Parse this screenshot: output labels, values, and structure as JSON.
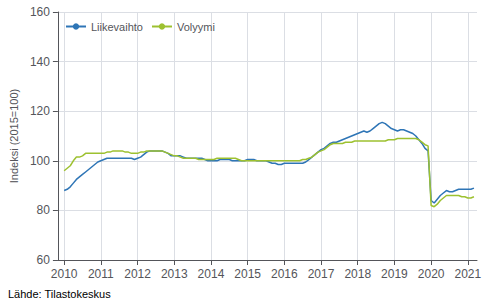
{
  "chart_data": {
    "type": "line",
    "ylabel": "Indeksi (2015=100)",
    "annotation": "Lähde: Tilastokeskus",
    "legend": "upper left",
    "grid": true,
    "xlim": [
      2009.83,
      2021.25
    ],
    "xticks": [
      2010,
      2011,
      2012,
      2013,
      2014,
      2015,
      2016,
      2017,
      2018,
      2019,
      2020,
      2021
    ],
    "ylim": [
      60,
      160
    ],
    "yticks": [
      60,
      80,
      100,
      120,
      140,
      160
    ],
    "x": [
      2010,
      2010.0833333333333,
      2010.1666666666667,
      2010.25,
      2010.3333333333333,
      2010.4166666666667,
      2010.5,
      2010.5833333333333,
      2010.6666666666667,
      2010.75,
      2010.8333333333333,
      2010.9166666666667,
      2011,
      2011.0833333333333,
      2011.1666666666667,
      2011.25,
      2011.3333333333333,
      2011.4166666666667,
      2011.5,
      2011.5833333333333,
      2011.6666666666667,
      2011.75,
      2011.8333333333333,
      2011.9166666666667,
      2012,
      2012.0833333333333,
      2012.1666666666667,
      2012.25,
      2012.3333333333333,
      2012.4166666666667,
      2012.5,
      2012.5833333333333,
      2012.6666666666667,
      2012.75,
      2012.8333333333333,
      2012.9166666666667,
      2013,
      2013.0833333333333,
      2013.1666666666667,
      2013.25,
      2013.3333333333333,
      2013.4166666666667,
      2013.5,
      2013.5833333333333,
      2013.6666666666667,
      2013.75,
      2013.8333333333333,
      2013.9166666666667,
      2014,
      2014.0833333333333,
      2014.1666666666667,
      2014.25,
      2014.3333333333333,
      2014.4166666666667,
      2014.5,
      2014.5833333333333,
      2014.6666666666667,
      2014.75,
      2014.8333333333333,
      2014.9166666666667,
      2015,
      2015.0833333333333,
      2015.1666666666667,
      2015.25,
      2015.3333333333333,
      2015.4166666666667,
      2015.5,
      2015.5833333333333,
      2015.6666666666667,
      2015.75,
      2015.8333333333333,
      2015.9166666666667,
      2016,
      2016.0833333333333,
      2016.1666666666667,
      2016.25,
      2016.3333333333333,
      2016.4166666666667,
      2016.5,
      2016.5833333333333,
      2016.6666666666667,
      2016.75,
      2016.8333333333333,
      2016.9166666666667,
      2017,
      2017.0833333333333,
      2017.1666666666667,
      2017.25,
      2017.3333333333333,
      2017.4166666666667,
      2017.5,
      2017.5833333333333,
      2017.6666666666667,
      2017.75,
      2017.8333333333333,
      2017.9166666666667,
      2018,
      2018.0833333333333,
      2018.1666666666667,
      2018.25,
      2018.3333333333333,
      2018.4166666666667,
      2018.5,
      2018.5833333333333,
      2018.6666666666667,
      2018.75,
      2018.8333333333333,
      2018.9166666666667,
      2019,
      2019.0833333333333,
      2019.1666666666667,
      2019.25,
      2019.3333333333333,
      2019.4166666666667,
      2019.5,
      2019.5833333333333,
      2019.6666666666667,
      2019.75,
      2019.8333333333333,
      2019.9166666666667,
      2020,
      2020.0833333333333,
      2020.1666666666667,
      2020.25,
      2020.3333333333333,
      2020.4166666666667,
      2020.5,
      2020.5833333333333,
      2020.6666666666667,
      2020.75,
      2020.8333333333333,
      2020.9166666666667,
      2021,
      2021.0833333333333,
      2021.1666666666667
    ],
    "series": [
      {
        "name": "Liikevaihto",
        "color": "#2E75B6",
        "values": [
          88.0,
          88.5,
          89.5,
          91.0,
          92.5,
          93.5,
          94.5,
          95.5,
          96.5,
          97.5,
          98.5,
          99.5,
          100.0,
          100.5,
          101.0,
          101.0,
          101.0,
          101.0,
          101.0,
          101.0,
          101.0,
          101.0,
          101.0,
          100.5,
          101.0,
          101.5,
          102.5,
          103.5,
          104.0,
          104.0,
          104.0,
          104.0,
          104.0,
          103.5,
          103.0,
          102.0,
          102.0,
          102.0,
          102.0,
          101.5,
          101.0,
          101.0,
          101.0,
          101.0,
          101.0,
          101.0,
          100.5,
          100.0,
          100.0,
          100.0,
          100.0,
          100.5,
          100.5,
          100.5,
          100.5,
          100.0,
          100.0,
          100.0,
          100.0,
          100.0,
          100.5,
          100.5,
          100.5,
          100.0,
          100.0,
          100.0,
          100.0,
          99.5,
          99.0,
          99.0,
          98.5,
          98.5,
          99.0,
          99.0,
          99.0,
          99.0,
          99.0,
          99.0,
          99.0,
          99.5,
          100.5,
          101.5,
          102.5,
          103.5,
          104.5,
          105.0,
          106.0,
          107.0,
          107.5,
          107.5,
          108.0,
          108.5,
          109.0,
          109.5,
          110.0,
          110.5,
          111.0,
          111.5,
          112.0,
          111.5,
          112.0,
          113.0,
          114.0,
          115.0,
          115.5,
          115.0,
          114.0,
          113.0,
          112.5,
          112.0,
          112.5,
          112.5,
          112.0,
          111.5,
          111.0,
          110.0,
          108.5,
          107.0,
          105.0,
          104.0,
          84.0,
          83.0,
          84.5,
          86.0,
          87.0,
          88.0,
          87.5,
          87.5,
          88.0,
          88.5,
          88.5,
          88.5,
          88.5,
          88.5,
          89.0
        ]
      },
      {
        "name": "Volyymi",
        "color": "#9DC130",
        "values": [
          96.0,
          97.0,
          98.0,
          100.0,
          101.5,
          101.5,
          102.0,
          103.0,
          103.0,
          103.0,
          103.0,
          103.0,
          103.0,
          103.0,
          103.5,
          103.5,
          104.0,
          104.0,
          104.0,
          104.0,
          103.5,
          103.5,
          103.0,
          103.0,
          103.0,
          103.5,
          103.5,
          104.0,
          104.0,
          104.0,
          104.0,
          104.0,
          104.0,
          103.5,
          103.0,
          102.5,
          102.0,
          102.0,
          101.5,
          101.0,
          101.0,
          101.0,
          101.0,
          101.0,
          100.5,
          100.5,
          100.5,
          100.5,
          100.5,
          100.5,
          101.0,
          101.0,
          101.0,
          101.0,
          101.0,
          101.0,
          101.0,
          100.5,
          100.0,
          100.0,
          100.0,
          100.0,
          100.0,
          100.0,
          100.0,
          100.0,
          100.0,
          100.0,
          100.0,
          100.0,
          100.0,
          100.0,
          100.0,
          100.0,
          100.0,
          100.0,
          100.0,
          100.0,
          100.5,
          100.5,
          101.0,
          101.5,
          102.5,
          103.5,
          104.0,
          104.5,
          105.5,
          106.5,
          107.0,
          107.0,
          107.0,
          107.0,
          107.5,
          107.5,
          107.5,
          108.0,
          108.0,
          108.0,
          108.0,
          108.0,
          108.0,
          108.0,
          108.0,
          108.0,
          108.0,
          108.0,
          108.5,
          108.5,
          108.5,
          109.0,
          109.0,
          109.0,
          109.0,
          109.0,
          109.0,
          109.0,
          108.5,
          107.5,
          106.5,
          106.0,
          82.0,
          81.5,
          82.5,
          84.0,
          85.0,
          86.0,
          86.0,
          86.0,
          86.0,
          86.0,
          85.5,
          85.5,
          85.0,
          85.0,
          85.5
        ]
      }
    ]
  }
}
